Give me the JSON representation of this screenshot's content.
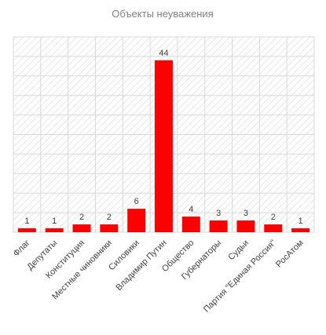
{
  "chart_data": {
    "type": "bar",
    "title": "Объекты неуважения",
    "xlabel": "",
    "ylabel": "",
    "ylim": [
      0,
      50
    ],
    "y_gridline_step": 5,
    "grid": true,
    "legend": "none",
    "bar_color": "#ff0000",
    "categories": [
      "Флаг",
      "Депутаты",
      "Конституция",
      "Местные чиновники",
      "Силовики",
      "Владимир Путин",
      "Общество",
      "Губернаторы",
      "Судьи",
      "Партия \"Единая Россия\"",
      "РосАтом"
    ],
    "values": [
      1,
      1,
      2,
      2,
      6,
      44,
      4,
      3,
      3,
      2,
      1
    ]
  }
}
